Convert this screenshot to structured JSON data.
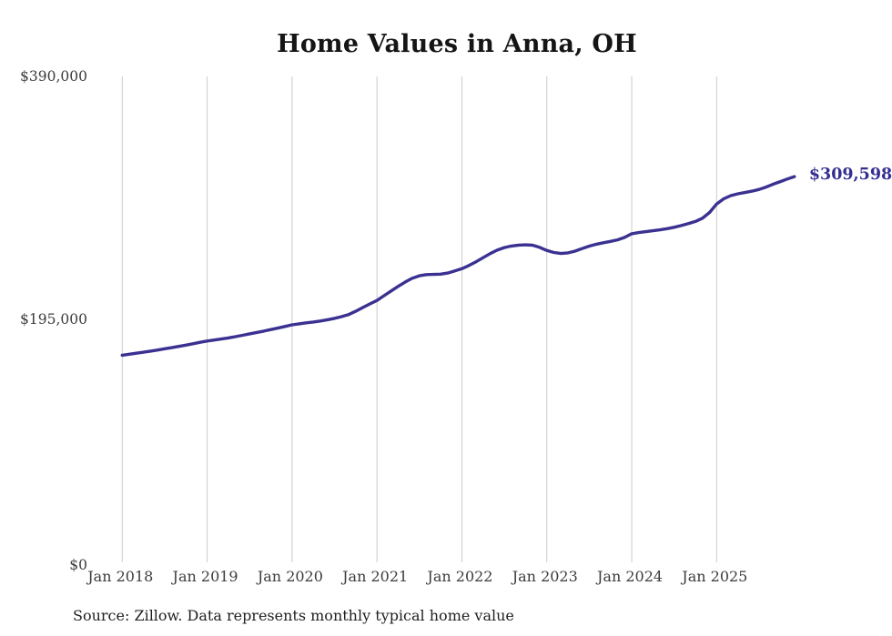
{
  "chart_data": {
    "type": "line",
    "title": "Home Values in Anna, OH",
    "series_name": "Monthly typical home value",
    "x_start": "Jan 2018",
    "x_freq": "monthly",
    "x_ticks": [
      "Jan 2018",
      "Jan 2019",
      "Jan 2020",
      "Jan 2021",
      "Jan 2022",
      "Jan 2023",
      "Jan 2024",
      "Jan 2025"
    ],
    "y_ticks": [
      {
        "label": "$390,000",
        "value": 390000
      },
      {
        "label": "$195,000",
        "value": 195000
      },
      {
        "label": "$0",
        "value": 0
      }
    ],
    "ylim": [
      0,
      390000
    ],
    "grid": "vertical-only",
    "legend": "none",
    "line_color": "#3a3191",
    "gridline_color": "#cbcbcb",
    "end_label": "$309,598",
    "end_value": 309598,
    "source_note": "Source: Zillow. Data represents monthly typical home value",
    "values": [
      166200,
      167000,
      167800,
      168600,
      169500,
      170400,
      171400,
      172300,
      173300,
      174300,
      175400,
      176600,
      177600,
      178400,
      179200,
      180100,
      181100,
      182200,
      183400,
      184500,
      185600,
      186800,
      188000,
      189300,
      190600,
      191400,
      192200,
      192900,
      193700,
      194700,
      195800,
      197200,
      198900,
      201500,
      204500,
      207400,
      210200,
      214000,
      217800,
      221500,
      225000,
      228000,
      230000,
      230900,
      231100,
      231300,
      232200,
      233900,
      235700,
      238200,
      241200,
      244500,
      247800,
      250600,
      252600,
      253900,
      254600,
      254800,
      254500,
      252800,
      250300,
      248700,
      247900,
      248400,
      249800,
      251800,
      253800,
      255300,
      256500,
      257600,
      258800,
      260800,
      263700,
      264700,
      265400,
      266100,
      266900,
      267800,
      268900,
      270300,
      271900,
      273600,
      276200,
      280800,
      287600,
      291800,
      294300,
      295800,
      296800,
      297900,
      299300,
      301200,
      303500,
      305600,
      307700,
      309598
    ]
  }
}
